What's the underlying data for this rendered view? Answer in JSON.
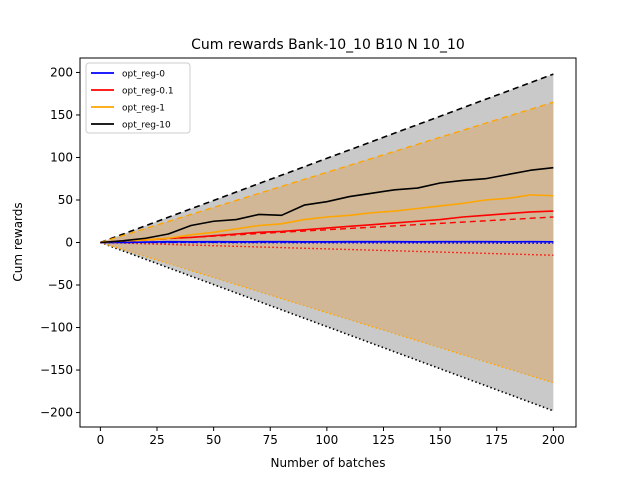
{
  "chart_data": {
    "type": "line",
    "title": "Cum rewards Bank-10_10 B10 N 10_10",
    "xlabel": "Number of batches",
    "ylabel": "Cum rewards",
    "xlim": [
      -9,
      210
    ],
    "ylim": [
      -217,
      217
    ],
    "xticks": [
      0,
      25,
      50,
      75,
      100,
      125,
      150,
      175,
      200
    ],
    "yticks": [
      -200,
      -150,
      -100,
      -50,
      0,
      50,
      100,
      150,
      200
    ],
    "grid": false,
    "legend_position": "top-left",
    "colors": {
      "opt_reg-0": "#0000ff",
      "opt_reg-0.1": "#ff0000",
      "opt_reg-1": "#ffa500",
      "opt_reg-10": "#000000",
      "band_outer": "#c9c9c9",
      "band_inner": "#d2b48c"
    },
    "series": [
      {
        "name": "opt_reg-0",
        "x": [
          0,
          10,
          20,
          30,
          40,
          50,
          60,
          70,
          80,
          90,
          100,
          110,
          120,
          130,
          140,
          150,
          160,
          170,
          180,
          190,
          200
        ],
        "values": [
          0,
          0,
          0.5,
          1,
          0.8,
          1,
          0.8,
          0.9,
          1,
          0.8,
          0.8,
          0.9,
          1,
          0.9,
          0.8,
          0.9,
          1,
          0.9,
          0.8,
          0.9,
          0.8
        ]
      },
      {
        "name": "opt_reg-0.1",
        "x": [
          0,
          10,
          20,
          30,
          40,
          50,
          60,
          70,
          80,
          90,
          100,
          110,
          120,
          130,
          140,
          150,
          160,
          170,
          180,
          190,
          200
        ],
        "values": [
          0,
          2,
          3,
          5,
          6,
          8,
          10,
          12,
          13,
          15,
          17,
          19,
          21,
          23,
          25,
          27,
          30,
          32,
          34,
          36,
          37
        ]
      },
      {
        "name": "opt_reg-1",
        "x": [
          0,
          10,
          20,
          30,
          40,
          50,
          60,
          70,
          80,
          90,
          100,
          110,
          120,
          130,
          140,
          150,
          160,
          170,
          180,
          190,
          200
        ],
        "values": [
          0,
          2,
          3,
          5,
          9,
          12,
          16,
          20,
          22,
          27,
          30,
          32,
          35,
          37,
          40,
          43,
          46,
          50,
          52,
          56,
          55
        ]
      },
      {
        "name": "opt_reg-10",
        "x": [
          0,
          10,
          20,
          30,
          40,
          50,
          60,
          70,
          80,
          90,
          100,
          110,
          120,
          130,
          140,
          150,
          160,
          170,
          180,
          190,
          200
        ],
        "values": [
          0,
          2,
          5,
          10,
          20,
          25,
          27,
          33,
          32,
          44,
          48,
          54,
          58,
          62,
          64,
          70,
          73,
          75,
          80,
          85,
          88
        ]
      }
    ],
    "bounds": [
      {
        "series": "opt_reg-10",
        "upper": [
          0,
          198
        ],
        "lower": [
          0,
          -198
        ]
      },
      {
        "series": "opt_reg-1",
        "upper": [
          0,
          165
        ],
        "lower": [
          0,
          -165
        ]
      },
      {
        "series": "opt_reg-0.1",
        "upper": [
          0,
          30
        ],
        "lower": [
          0,
          -15
        ]
      },
      {
        "series": "opt_reg-0",
        "upper": [
          0,
          1
        ],
        "lower": [
          0,
          -1
        ]
      }
    ]
  }
}
